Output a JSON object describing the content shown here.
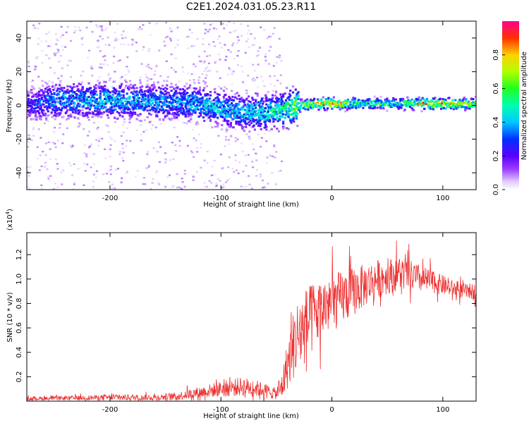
{
  "title": "C2E1.2024.031.05.23.R11",
  "colors": {
    "snr_line": "#ee3030",
    "frame": "#000000"
  },
  "chart_data": [
    {
      "type": "heatmap",
      "title": "C2E1.2024.031.05.23.R11",
      "xlabel": "Height of straight line (km)",
      "ylabel": "Frequency (Hz)",
      "xlim": [
        -275,
        130
      ],
      "ylim": [
        -50,
        50
      ],
      "xticks": [
        -200,
        -100,
        0,
        100
      ],
      "yticks": [
        -40,
        -20,
        0,
        20,
        40
      ],
      "xtick_labels": [
        "-200",
        "-100",
        "0",
        "100"
      ],
      "ytick_labels": [
        "-40",
        "-20",
        "0",
        "20",
        "40"
      ],
      "ridge": {
        "description_points_x": [
          -275,
          -250,
          -200,
          -150,
          -120,
          -100,
          -80,
          -60,
          -45,
          -30,
          -10,
          0,
          20,
          60,
          90,
          130
        ],
        "center_hz": [
          0,
          3,
          3,
          2,
          1,
          -2,
          -4,
          -4,
          -3,
          0,
          1,
          1,
          1,
          1,
          1,
          1
        ],
        "amplitude": [
          0.25,
          0.4,
          0.45,
          0.4,
          0.45,
          0.45,
          0.45,
          0.5,
          0.55,
          0.7,
          0.85,
          0.9,
          0.6,
          0.55,
          0.95,
          0.65
        ]
      },
      "colorbar": {
        "label": "Normalized spectral amplitude",
        "range": [
          0,
          1
        ],
        "ticks": [
          0.0,
          0.2,
          0.4,
          0.6,
          0.8
        ],
        "tick_labels": [
          "0.0",
          "0.2",
          "0.4",
          "0.6",
          "0.8"
        ]
      }
    },
    {
      "type": "line",
      "xlabel": "Height of straight line (km)",
      "ylabel": "SNR (10 * v/v)",
      "exponent_label": "(x10",
      "exponent_power": "4",
      "exponent_close": ")",
      "xlim": [
        -275,
        130
      ],
      "ylim": [
        0,
        1.38
      ],
      "xticks": [
        -200,
        -100,
        0,
        100
      ],
      "yticks": [
        0.2,
        0.4,
        0.6,
        0.8,
        1.0,
        1.2
      ],
      "xtick_labels": [
        "-200",
        "-100",
        "0",
        "100"
      ],
      "ytick_labels": [
        "0.2",
        "0.4",
        "0.6",
        "0.8",
        "1.0",
        "1.2"
      ],
      "series": [
        {
          "name": "SNR",
          "x": [
            -275,
            -240,
            -200,
            -160,
            -140,
            -120,
            -100,
            -80,
            -65,
            -50,
            -45,
            -40,
            -35,
            -30,
            -25,
            -20,
            -15,
            -10,
            -5,
            0,
            10,
            20,
            30,
            40,
            50,
            60,
            70,
            80,
            90,
            100,
            110,
            120,
            130
          ],
          "mean": [
            0.02,
            0.025,
            0.03,
            0.03,
            0.04,
            0.07,
            0.1,
            0.12,
            0.1,
            0.06,
            0.12,
            0.3,
            0.45,
            0.55,
            0.6,
            0.65,
            0.7,
            0.75,
            0.78,
            0.8,
            0.85,
            0.9,
            0.95,
            1.0,
            1.02,
            1.05,
            1.03,
            1.0,
            0.98,
            0.95,
            0.92,
            0.9,
            0.9
          ],
          "spread": [
            0.02,
            0.02,
            0.03,
            0.03,
            0.04,
            0.06,
            0.08,
            0.1,
            0.08,
            0.06,
            0.15,
            0.25,
            0.35,
            0.4,
            0.4,
            0.38,
            0.35,
            0.32,
            0.3,
            0.3,
            0.28,
            0.25,
            0.22,
            0.2,
            0.18,
            0.18,
            0.16,
            0.14,
            0.12,
            0.1,
            0.08,
            0.08,
            0.08
          ]
        }
      ]
    }
  ]
}
